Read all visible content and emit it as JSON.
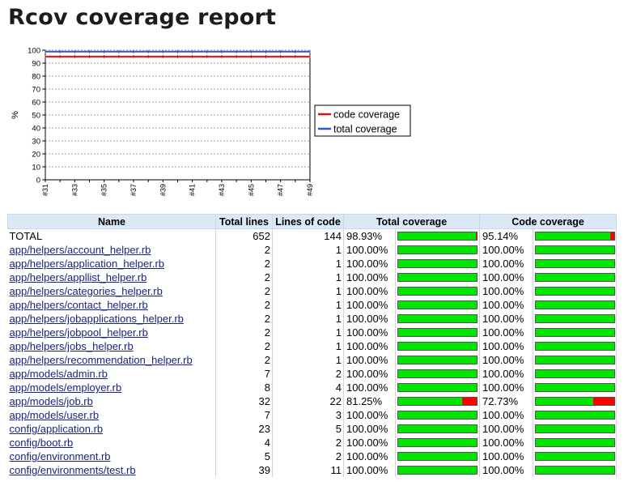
{
  "page_title": "Rcov coverage report",
  "chart_data": {
    "type": "line",
    "ylabel": "%",
    "ylim": [
      0,
      100
    ],
    "yticks": [
      0,
      10,
      20,
      30,
      40,
      50,
      60,
      70,
      80,
      90,
      100
    ],
    "x": [
      "#31",
      "#32",
      "#33",
      "#34",
      "#35",
      "#36",
      "#37",
      "#38",
      "#39",
      "#40",
      "#41",
      "#42",
      "#43",
      "#44",
      "#45",
      "#46",
      "#47",
      "#48",
      "#49"
    ],
    "xtick_labels": [
      "#31",
      "#33",
      "#35",
      "#37",
      "#39",
      "#41",
      "#43",
      "#45",
      "#47",
      "#49"
    ],
    "grid": true,
    "legend_position": "right",
    "series": [
      {
        "name": "code coverage",
        "color": "#e01010",
        "values": [
          95.1,
          95.1,
          95.1,
          95.1,
          95.1,
          95.1,
          95.1,
          95.1,
          95.1,
          95.1,
          95.1,
          95.1,
          95.1,
          95.1,
          95.1,
          95.1,
          95.1,
          95.1,
          95.1
        ]
      },
      {
        "name": "total coverage",
        "color": "#3355cc",
        "values": [
          98.9,
          98.9,
          98.9,
          98.9,
          98.9,
          98.9,
          98.9,
          98.9,
          98.9,
          98.9,
          98.9,
          98.9,
          98.9,
          98.9,
          98.9,
          98.9,
          98.9,
          98.9,
          98.9
        ]
      }
    ]
  },
  "table": {
    "headers": [
      "Name",
      "Total lines",
      "Lines of code",
      "Total coverage",
      "Code coverage"
    ],
    "rows": [
      {
        "name": "TOTAL",
        "link": false,
        "total_lines": "652",
        "loc": "144",
        "total_cov": "98.93%",
        "total_val": 98.93,
        "code_cov": "95.14%",
        "code_val": 95.14
      },
      {
        "name": "app/helpers/account_helper.rb",
        "link": true,
        "total_lines": "2",
        "loc": "1",
        "total_cov": "100.00%",
        "total_val": 100,
        "code_cov": "100.00%",
        "code_val": 100
      },
      {
        "name": "app/helpers/application_helper.rb",
        "link": true,
        "total_lines": "2",
        "loc": "1",
        "total_cov": "100.00%",
        "total_val": 100,
        "code_cov": "100.00%",
        "code_val": 100
      },
      {
        "name": "app/helpers/appllist_helper.rb",
        "link": true,
        "total_lines": "2",
        "loc": "1",
        "total_cov": "100.00%",
        "total_val": 100,
        "code_cov": "100.00%",
        "code_val": 100
      },
      {
        "name": "app/helpers/categories_helper.rb",
        "link": true,
        "total_lines": "2",
        "loc": "1",
        "total_cov": "100.00%",
        "total_val": 100,
        "code_cov": "100.00%",
        "code_val": 100
      },
      {
        "name": "app/helpers/contact_helper.rb",
        "link": true,
        "total_lines": "2",
        "loc": "1",
        "total_cov": "100.00%",
        "total_val": 100,
        "code_cov": "100.00%",
        "code_val": 100
      },
      {
        "name": "app/helpers/jobapplications_helper.rb",
        "link": true,
        "total_lines": "2",
        "loc": "1",
        "total_cov": "100.00%",
        "total_val": 100,
        "code_cov": "100.00%",
        "code_val": 100
      },
      {
        "name": "app/helpers/jobpool_helper.rb",
        "link": true,
        "total_lines": "2",
        "loc": "1",
        "total_cov": "100.00%",
        "total_val": 100,
        "code_cov": "100.00%",
        "code_val": 100
      },
      {
        "name": "app/helpers/jobs_helper.rb",
        "link": true,
        "total_lines": "2",
        "loc": "1",
        "total_cov": "100.00%",
        "total_val": 100,
        "code_cov": "100.00%",
        "code_val": 100
      },
      {
        "name": "app/helpers/recommendation_helper.rb",
        "link": true,
        "total_lines": "2",
        "loc": "1",
        "total_cov": "100.00%",
        "total_val": 100,
        "code_cov": "100.00%",
        "code_val": 100
      },
      {
        "name": "app/models/admin.rb",
        "link": true,
        "total_lines": "7",
        "loc": "2",
        "total_cov": "100.00%",
        "total_val": 100,
        "code_cov": "100.00%",
        "code_val": 100
      },
      {
        "name": "app/models/employer.rb",
        "link": true,
        "total_lines": "8",
        "loc": "4",
        "total_cov": "100.00%",
        "total_val": 100,
        "code_cov": "100.00%",
        "code_val": 100
      },
      {
        "name": "app/models/job.rb",
        "link": true,
        "total_lines": "32",
        "loc": "22",
        "total_cov": "81.25%",
        "total_val": 81.25,
        "code_cov": "72.73%",
        "code_val": 72.73
      },
      {
        "name": "app/models/user.rb",
        "link": true,
        "total_lines": "7",
        "loc": "3",
        "total_cov": "100.00%",
        "total_val": 100,
        "code_cov": "100.00%",
        "code_val": 100
      },
      {
        "name": "config/application.rb",
        "link": true,
        "total_lines": "23",
        "loc": "5",
        "total_cov": "100.00%",
        "total_val": 100,
        "code_cov": "100.00%",
        "code_val": 100
      },
      {
        "name": "config/boot.rb",
        "link": true,
        "total_lines": "4",
        "loc": "2",
        "total_cov": "100.00%",
        "total_val": 100,
        "code_cov": "100.00%",
        "code_val": 100
      },
      {
        "name": "config/environment.rb",
        "link": true,
        "total_lines": "5",
        "loc": "2",
        "total_cov": "100.00%",
        "total_val": 100,
        "code_cov": "100.00%",
        "code_val": 100
      },
      {
        "name": "config/environments/test.rb",
        "link": true,
        "total_lines": "39",
        "loc": "11",
        "total_cov": "100.00%",
        "total_val": 100,
        "code_cov": "100.00%",
        "code_val": 100
      }
    ]
  }
}
